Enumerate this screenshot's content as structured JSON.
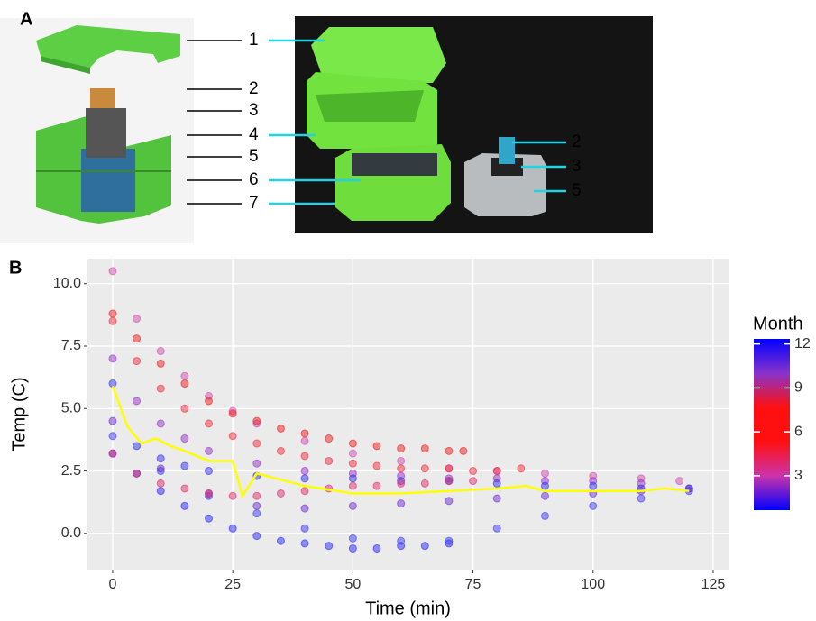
{
  "panel_labels": [
    "A",
    "B"
  ],
  "panel_a": {
    "callouts": [
      "1",
      "2",
      "3",
      "4",
      "5",
      "6",
      "7"
    ],
    "photo_callouts": [
      "2",
      "3",
      "5"
    ]
  },
  "chart_data": {
    "type": "scatter",
    "xlabel": "Time (min)",
    "ylabel": "Temp (C)",
    "xlim": [
      -5.25,
      128.2
    ],
    "ylim": [
      -1.45,
      11.0
    ],
    "xticks": [
      0,
      25,
      50,
      75,
      100,
      125
    ],
    "yticks": [
      {
        "value": 0,
        "label": "0.0"
      },
      {
        "value": 2.5,
        "label": "2.5"
      },
      {
        "value": 5,
        "label": "5.0"
      },
      {
        "value": 7.5,
        "label": "7.5"
      },
      {
        "value": 10,
        "label": "10.0"
      }
    ],
    "grid": true,
    "colorbar": {
      "title": "Month",
      "lim": [
        0.65,
        12.35
      ],
      "ticks": [
        3,
        6,
        9,
        12
      ],
      "colors": [
        "#0000ff",
        "#cc33aa",
        "#ff1010",
        "#ff1010",
        "#8833cc",
        "#0000ff"
      ]
    },
    "series": [
      {
        "color": "#d050b0",
        "x": [
          0,
          5,
          10,
          15,
          20,
          25,
          30,
          40,
          50,
          60,
          70,
          80,
          90,
          100,
          110,
          118
        ],
        "values": [
          10.5,
          8.6,
          7.3,
          6.3,
          5.5,
          4.9,
          4.4,
          3.7,
          3.2,
          2.9,
          2.6,
          2.5,
          2.4,
          2.3,
          2.2,
          2.1
        ]
      },
      {
        "color": "#ee2020",
        "x": [
          0,
          5,
          10,
          15,
          20,
          25,
          30,
          35,
          40,
          45,
          50,
          55,
          60,
          65,
          70,
          73
        ],
        "values": [
          8.8,
          7.8,
          6.8,
          6.0,
          5.3,
          4.8,
          4.5,
          4.2,
          4.0,
          3.8,
          3.6,
          3.5,
          3.4,
          3.4,
          3.3,
          3.3
        ]
      },
      {
        "color": "#f03040",
        "x": [
          0,
          5,
          10,
          15,
          20,
          25,
          30,
          35,
          40,
          45,
          50,
          55,
          60,
          65,
          70,
          75,
          80,
          85
        ],
        "values": [
          8.5,
          6.9,
          5.8,
          5.0,
          4.4,
          3.9,
          3.6,
          3.3,
          3.1,
          2.9,
          2.8,
          2.7,
          2.6,
          2.6,
          2.6,
          2.5,
          2.5,
          2.6
        ]
      },
      {
        "color": "#9933cc",
        "x": [
          0,
          5,
          10,
          15,
          20,
          30,
          40,
          50,
          60,
          70,
          80,
          90,
          100,
          110
        ],
        "values": [
          7.0,
          5.3,
          4.4,
          3.8,
          3.3,
          2.8,
          2.5,
          2.4,
          2.3,
          2.2,
          2.2,
          2.1,
          2.1,
          2.0
        ]
      },
      {
        "color": "#3333ee",
        "x": [
          0,
          5,
          10,
          15,
          20,
          30,
          40,
          50,
          60,
          70,
          80,
          90,
          100,
          110,
          120
        ],
        "values": [
          6.0,
          3.5,
          3.0,
          2.7,
          2.5,
          2.3,
          2.2,
          2.2,
          2.1,
          2.1,
          2.0,
          1.9,
          1.9,
          1.8,
          1.8
        ]
      },
      {
        "color": "#2a2aff",
        "x": [
          0,
          5,
          10,
          15,
          20,
          25,
          30,
          35,
          40,
          45,
          50,
          55,
          60,
          65,
          70
        ],
        "values": [
          3.2,
          2.4,
          1.7,
          1.1,
          0.6,
          0.2,
          -0.1,
          -0.3,
          -0.4,
          -0.5,
          -0.6,
          -0.6,
          -0.5,
          -0.5,
          -0.4
        ]
      },
      {
        "color": "#4040f0",
        "x": [
          0,
          10,
          20,
          30,
          40,
          50,
          60,
          70,
          80,
          90,
          100,
          110,
          120
        ],
        "values": [
          3.9,
          2.5,
          1.5,
          0.8,
          0.2,
          -0.2,
          -0.3,
          -0.3,
          0.2,
          0.7,
          1.1,
          1.4,
          1.7
        ]
      },
      {
        "color": "#7030d0",
        "x": [
          0,
          10,
          20,
          30,
          40,
          50,
          60,
          70,
          80,
          90,
          100,
          110,
          120
        ],
        "values": [
          4.5,
          2.6,
          1.6,
          1.1,
          1.0,
          1.1,
          1.2,
          1.3,
          1.4,
          1.5,
          1.6,
          1.7,
          1.8
        ]
      },
      {
        "color": "#e03070",
        "x": [
          0,
          5,
          10,
          15,
          20,
          25,
          30,
          35,
          40,
          45,
          50,
          55,
          60,
          65,
          70,
          75
        ],
        "values": [
          3.2,
          2.4,
          2.0,
          1.8,
          1.6,
          1.5,
          1.5,
          1.6,
          1.7,
          1.8,
          1.9,
          1.9,
          2.0,
          2.0,
          2.1,
          2.1
        ]
      },
      {
        "color": "#ffff00",
        "mode": "line",
        "x": [
          0,
          3,
          6,
          9,
          12,
          15,
          20,
          25,
          27,
          30,
          40,
          50,
          60,
          70,
          80,
          86,
          90,
          100,
          110,
          115,
          120
        ],
        "values": [
          5.9,
          4.3,
          3.6,
          3.8,
          3.5,
          3.3,
          2.9,
          2.9,
          1.5,
          2.4,
          1.9,
          1.6,
          1.6,
          1.7,
          1.8,
          1.9,
          1.7,
          1.7,
          1.7,
          1.8,
          1.7
        ]
      }
    ]
  }
}
